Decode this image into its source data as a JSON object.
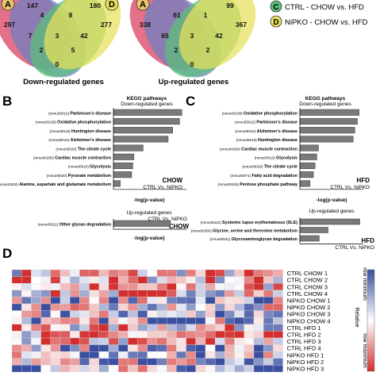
{
  "venn": {
    "left": {
      "label_a": "A",
      "label_d": "D",
      "numbers": [
        "147",
        "180",
        "297",
        "4",
        "8",
        "277",
        "7",
        "3",
        "42",
        "2",
        "5",
        "0"
      ],
      "caption": "Down-regulated genes"
    },
    "right": {
      "label_a": "A",
      "numbers": [
        "99",
        "338",
        "367",
        "65",
        "61",
        "1",
        "3",
        "2",
        "42",
        "2",
        "0"
      ],
      "caption": "Up-regulated genes"
    },
    "colors": {
      "a": "#d9395c",
      "b": "#6b7fc4",
      "c": "#5cbf7a",
      "d": "#e8e15a"
    }
  },
  "legend": {
    "c_letter": "C",
    "c_text": "CTRL - CHOW vs. HFD",
    "d_letter": "D",
    "d_text": "NiPKO - CHOW vs. HFD"
  },
  "panel_b": {
    "letter": "B",
    "kegg_title": "KEGG pathways",
    "kegg_subtitle": "Down-regulated genes",
    "condition": "CHOW",
    "comparison": "CTRL Vs. NiPKO",
    "xlabel": "-log(p-value)",
    "up_title": "Up-regulated genes",
    "up_comparison": "CTRL Vs. NiPKO",
    "up_condition": "CHOW"
  },
  "panel_c": {
    "letter": "C",
    "kegg_title": "KEGG pathways",
    "kegg_subtitle": "Down-regulated genes",
    "condition": "HFD",
    "comparison": "CTRL Vs. NiPKO",
    "xlabel": "-log(p-value)",
    "up_title": "Up-regulated genes",
    "up_comparison": "CTRL Vs. NiPKO",
    "up_condition": "HFD"
  },
  "panel_d": {
    "letter": "D",
    "rows": [
      "CTRL CHOW 1",
      "CTRL CHOW 2",
      "CTRL CHOW 3",
      "CTRL CHOW 4",
      "NiPKO CHOW 1",
      "NiPKO CHOW 2",
      "NiPKO CHOW 3",
      "NiPKO CHOW 4",
      "CTRL HFD 1",
      "CTRL HFD 2",
      "CTRL HFD 3",
      "CTRL HFD 4",
      "NiPKO HFD 1",
      "NiPKO HFD 2",
      "NiPKO HFD 3"
    ],
    "scale_label_1": "Relative",
    "scale_label_2": "row minimum",
    "scale_label_3": "row maximum",
    "colors": {
      "low": "#3a4fa0",
      "mid": "#ffffff",
      "high": "#d32f2f"
    }
  },
  "chart_data": [
    {
      "type": "bar",
      "title": "KEGG pathways",
      "subtitle": "Down-regulated genes",
      "xlabel": "-log(p-value)",
      "categories": [
        "(mmu05012) Parkinson's disease",
        "(mmu00190) Oxidative phosphorylation",
        "(mmu05016) Huntington disease",
        "(mmu05010) Alzheimer's disease",
        "(mmu00020) The citrate cycle",
        "(mmu04260) Cardiac muscle contraction",
        "(mmu00010) Glycolysis",
        "(mmu00620) Pyruvate metabolism",
        "(mmu00250) Alanine, aspartate and glutamate metabolism"
      ],
      "values": [
        3.0,
        2.9,
        2.6,
        2.4,
        1.3,
        0.9,
        0.85,
        0.8,
        0.3
      ],
      "xlim": [
        0,
        3.2
      ]
    },
    {
      "type": "bar",
      "title": "Up-regulated genes",
      "xlabel": "-log(p-value)",
      "categories": [
        "(mmu00511) Other glycan degradation"
      ],
      "values": [
        2.5
      ],
      "xlim": [
        0,
        3.2
      ]
    },
    {
      "type": "bar",
      "title": "KEGG pathways",
      "subtitle": "Down-regulated genes",
      "xlabel": "-log(p-value)",
      "categories": [
        "(mmu00190) Oxidative phosphorylation",
        "(mmu05012) Parkinson's disease",
        "(mmu05010) Alzheimer's disease",
        "(mmu05016) Huntington disease",
        "(mmu04260) Cardiac muscle contraction",
        "(mmu00010) Glycolysis",
        "(mmu00020) The citrate cycle",
        "(mmu00071) Fatty acid degradation",
        "(mmu00030) Pentose phosphate pathway"
      ],
      "values": [
        7.0,
        6.8,
        6.5,
        6.3,
        2.2,
        2.0,
        1.8,
        1.6,
        1.2
      ],
      "xlim": [
        0,
        7.5
      ]
    },
    {
      "type": "bar",
      "title": "Up-regulated genes",
      "xlabel": "-log(p-value)",
      "categories": [
        "(mmu05322) Systemic lupus erythematosus (SLE)",
        "(mmu00260) Glycine, serine and threonine metabolism",
        "(mmu00531) Glycosaminoglycan degradation"
      ],
      "values": [
        3.4,
        1.6,
        1.1
      ],
      "xlim": [
        0,
        3.6
      ]
    }
  ]
}
